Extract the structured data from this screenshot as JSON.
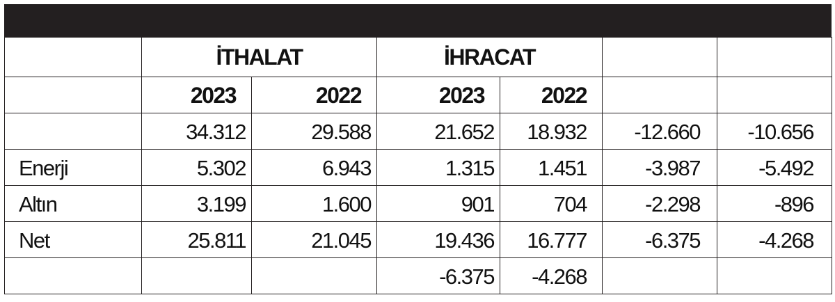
{
  "headers": {
    "imports": "İTHALAT",
    "exports": "İHRACAT"
  },
  "years": {
    "imports_2023": "2023",
    "imports_2022": "2022",
    "exports_2023": "2023",
    "exports_2022": "2022"
  },
  "rows": [
    {
      "label": "",
      "c1": "34.312",
      "c2": "29.588",
      "c3": "21.652",
      "c4": "18.932",
      "c5": "-12.660",
      "c6": "-10.656"
    },
    {
      "label": "Enerji",
      "c1": "5.302",
      "c2": "6.943",
      "c3": "1.315",
      "c4": "1.451",
      "c5": "-3.987",
      "c6": "-5.492"
    },
    {
      "label": "Altın",
      "c1": "3.199",
      "c2": "1.600",
      "c3": "901",
      "c4": "704",
      "c5": "-2.298",
      "c6": "-896"
    },
    {
      "label": "Net",
      "c1": "25.811",
      "c2": "21.045",
      "c3": "19.436",
      "c4": "16.777",
      "c5": "-6.375",
      "c6": "-4.268"
    },
    {
      "label": "",
      "c1": "",
      "c2": "",
      "c3": "-6.375",
      "c4": "-4.268",
      "c5": "",
      "c6": ""
    }
  ]
}
